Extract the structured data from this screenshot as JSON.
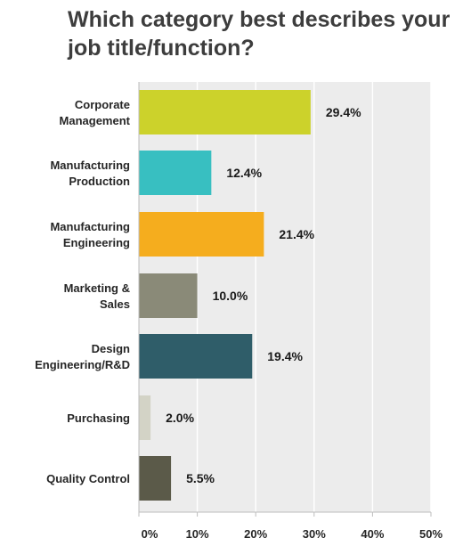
{
  "chart_data": {
    "type": "bar",
    "orientation": "horizontal",
    "title": "Which category best describes your job title/function?",
    "categories": [
      "Corporate\nManagement",
      "Manufacturing\nProduction",
      "Manufacturing\nEngineering",
      "Marketing &\nSales",
      "Design\nEngineering/R&D",
      "Purchasing",
      "Quality Control"
    ],
    "values": [
      29.4,
      12.4,
      21.4,
      10.0,
      19.4,
      2.0,
      5.5
    ],
    "value_labels": [
      "29.4%",
      "12.4%",
      "21.4%",
      "10.0%",
      "19.4%",
      "2.0%",
      "5.5%"
    ],
    "colors": [
      "#ccd22b",
      "#38bfc1",
      "#f5ad1e",
      "#8a8a78",
      "#2f5d69",
      "#d3d3c6",
      "#5b5a49"
    ],
    "xlim": [
      0,
      50
    ],
    "ticks": [
      "0%",
      "10%",
      "20%",
      "30%",
      "40%",
      "50%"
    ],
    "tick_values": [
      0,
      10,
      20,
      30,
      40,
      50
    ],
    "grid": true,
    "plot_background": "#ececec"
  }
}
